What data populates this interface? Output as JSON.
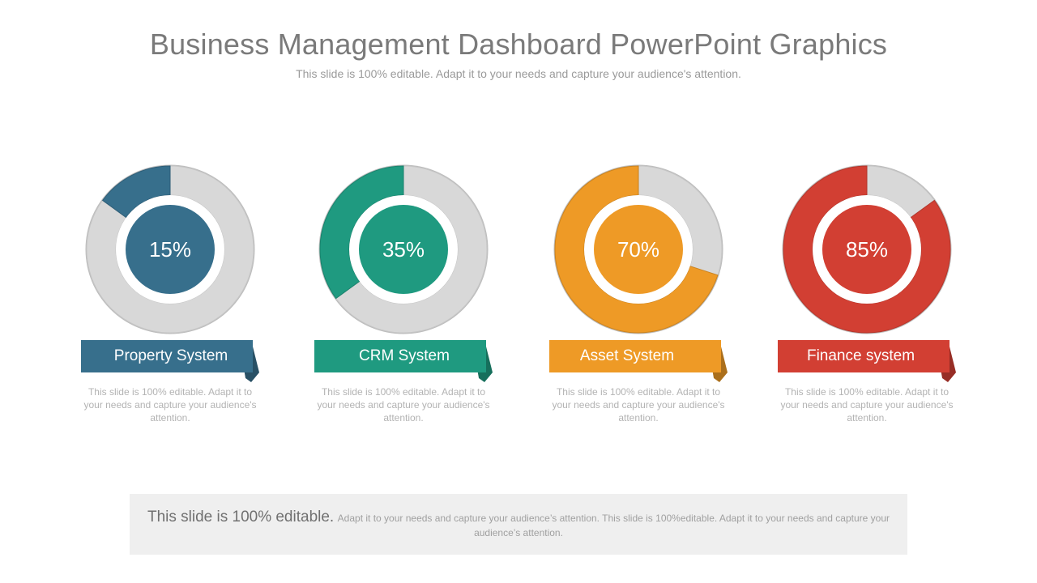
{
  "title": "Business Management Dashboard PowerPoint Graphics",
  "subtitle": "This slide is 100% editable. Adapt it to your needs and capture your audience's attention.",
  "chart_data": [
    {
      "type": "pie",
      "label": "Property System",
      "value": 15,
      "display": "15%",
      "color": "#376f8c",
      "description": "This slide is 100% editable. Adapt it to your needs and capture your audience's attention."
    },
    {
      "type": "pie",
      "label": "CRM System",
      "value": 35,
      "display": "35%",
      "color": "#1f9a80",
      "description": "This slide is 100% editable. Adapt it to your needs and capture your audience's attention."
    },
    {
      "type": "pie",
      "label": "Asset System",
      "value": 70,
      "display": "70%",
      "color": "#ee9a26",
      "description": "This slide is 100% editable. Adapt it to your needs and capture your audience's attention."
    },
    {
      "type": "pie",
      "label": "Finance system",
      "value": 85,
      "display": "85%",
      "color": "#d23f33",
      "description": "This slide is 100% editable. Adapt it to your needs and capture your audience's attention."
    }
  ],
  "colors": {
    "track": "#d8d8d8",
    "title": "#7a7a7a"
  },
  "footer": {
    "strong": "This slide is 100% editable.",
    "light": "Adapt it to your needs and capture your audience’s attention. This slide is 100%editable. Adapt it to your needs and capture your audience’s attention."
  }
}
